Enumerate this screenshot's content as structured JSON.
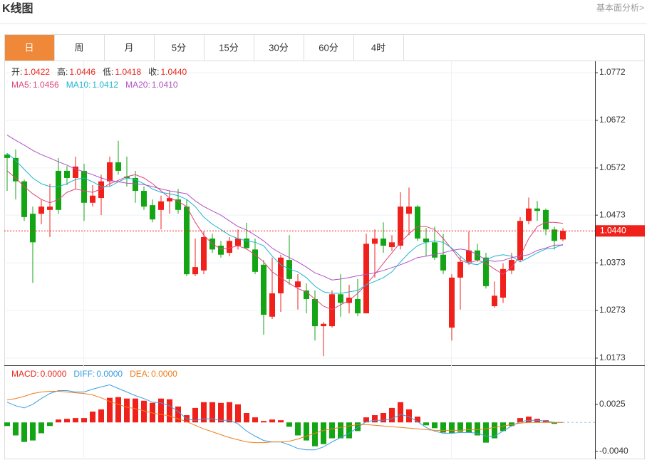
{
  "header": {
    "title": "K线图",
    "link": "基本面分析>"
  },
  "tabs": [
    "日",
    "周",
    "月",
    "5分",
    "15分",
    "30分",
    "60分",
    "4时"
  ],
  "active_tab": 0,
  "chart_data": [
    {
      "type": "candlestick",
      "info": [
        {
          "name": "开:",
          "value": 1.0422
        },
        {
          "name": "高:",
          "value": 1.0446
        },
        {
          "name": "低:",
          "value": 1.0418
        },
        {
          "name": "收:",
          "value": {
            "value": 1.044,
            "label": "1.0440"
          }
        }
      ],
      "info_color": "#e8261d",
      "up_color": "#f0211b",
      "down_color": "#14a514",
      "ylim": [
        1.0158,
        1.0796
      ],
      "yticks": [
        1.0772,
        1.0672,
        1.0572,
        1.0473,
        1.0373,
        1.0273,
        1.0173
      ],
      "grid": true,
      "last_price": {
        "value": 1.044,
        "label": "1.0440"
      },
      "open": [
        1.06,
        1.0593,
        1.0544,
        1.0476,
        1.0476,
        1.0484,
        1.0566,
        1.0566,
        1.0551,
        1.0566,
        1.0499,
        1.0509,
        1.0544,
        1.0584,
        1.0554,
        1.0551,
        1.0524,
        1.0494,
        1.0484,
        1.0502,
        1.0506,
        1.0491,
        1.0349,
        1.0357,
        1.0424,
        1.0409,
        1.0394,
        1.0409,
        1.0424,
        1.0401,
        1.0369,
        1.026,
        1.0309,
        1.0379,
        1.0322,
        1.0315,
        1.0297,
        1.024,
        1.024,
        1.0307,
        1.0289,
        1.0297,
        1.0267,
        1.0413,
        1.0424,
        1.0406,
        1.0409,
        1.0476,
        1.0491,
        1.0424,
        1.0416,
        1.039,
        1.0237,
        1.0342,
        1.0375,
        1.0399,
        1.0384,
        1.0282,
        1.03,
        1.0357,
        1.0379,
        1.0461,
        1.0487,
        1.0484,
        1.0443,
        1.0422
      ],
      "high": [
        1.0603,
        1.0611,
        1.0548,
        1.0491,
        1.0506,
        1.0539,
        1.0593,
        1.0576,
        1.0596,
        1.0581,
        1.0536,
        1.0558,
        1.0596,
        1.0629,
        1.0596,
        1.0566,
        1.0533,
        1.0506,
        1.0514,
        1.0524,
        1.0528,
        1.0506,
        1.0424,
        1.0439,
        1.0434,
        1.0419,
        1.0427,
        1.0443,
        1.0457,
        1.0424,
        1.0379,
        1.0384,
        1.039,
        1.0431,
        1.0349,
        1.033,
        1.0315,
        1.0249,
        1.0315,
        1.0349,
        1.0327,
        1.0339,
        1.0434,
        1.0443,
        1.0458,
        1.0431,
        1.0521,
        1.0531,
        1.0494,
        1.0446,
        1.0449,
        1.0434,
        1.0349,
        1.0387,
        1.0439,
        1.0413,
        1.0394,
        1.0334,
        1.0372,
        1.0394,
        1.0469,
        1.051,
        1.0503,
        1.0487,
        1.0449,
        1.0446
      ],
      "low": [
        1.0524,
        1.0506,
        1.0461,
        1.0331,
        1.0454,
        1.0427,
        1.0476,
        1.0536,
        1.0528,
        1.0461,
        1.0491,
        1.0473,
        1.0533,
        1.0558,
        1.0533,
        1.0499,
        1.0484,
        1.0458,
        1.0443,
        1.0476,
        1.0476,
        1.0345,
        1.0345,
        1.0349,
        1.0394,
        1.0384,
        1.0387,
        1.0401,
        1.0401,
        1.0349,
        1.0222,
        1.0255,
        1.027,
        1.0327,
        1.0275,
        1.0267,
        1.021,
        1.0177,
        1.0237,
        1.026,
        1.0267,
        1.0261,
        1.0267,
        1.0342,
        1.0394,
        1.0398,
        1.0401,
        1.0431,
        1.0419,
        1.0387,
        1.0379,
        1.0349,
        1.021,
        1.0275,
        1.0369,
        1.0375,
        1.0319,
        1.0279,
        1.0289,
        1.0349,
        1.0375,
        1.0454,
        1.0461,
        1.0431,
        1.0401,
        1.0418
      ],
      "close": [
        1.0593,
        1.0544,
        1.0469,
        1.0416,
        1.0491,
        1.0491,
        1.0484,
        1.0551,
        1.0575,
        1.0499,
        1.0514,
        1.0544,
        1.0584,
        1.0566,
        1.0551,
        1.0524,
        1.0491,
        1.0464,
        1.0502,
        1.0509,
        1.0484,
        1.0349,
        1.0364,
        1.0427,
        1.0401,
        1.039,
        1.0419,
        1.0424,
        1.0404,
        1.0354,
        1.0264,
        1.0309,
        1.0384,
        1.0339,
        1.0334,
        1.0297,
        1.024,
        1.0245,
        1.0307,
        1.0289,
        1.03,
        1.0267,
        1.0413,
        1.0424,
        1.0409,
        1.0416,
        1.0491,
        1.0491,
        1.0424,
        1.0416,
        1.0384,
        1.0357,
        1.0342,
        1.0375,
        1.0399,
        1.0379,
        1.0324,
        1.0304,
        1.036,
        1.0379,
        1.0461,
        1.0487,
        1.0482,
        1.0443,
        1.0419,
        1.044
      ],
      "ma": [
        {
          "name": "MA5:",
          "color": "#e0457b",
          "value": 1.0456,
          "values": [
            1.0566,
            1.0551,
            1.0533,
            1.0518,
            1.0506,
            1.0499,
            1.0506,
            1.0521,
            1.0528,
            1.0524,
            1.0521,
            1.0528,
            1.0539,
            1.0546,
            1.0554,
            1.0558,
            1.0551,
            1.0539,
            1.0524,
            1.0509,
            1.0502,
            1.0491,
            1.0458,
            1.0431,
            1.0413,
            1.0402,
            1.0404,
            1.0409,
            1.0402,
            1.039,
            1.0375,
            1.0354,
            1.0342,
            1.033,
            1.0319,
            1.0312,
            1.0297,
            1.0282,
            1.0275,
            1.0285,
            1.0294,
            1.0309,
            1.0327,
            1.0349,
            1.0372,
            1.0394,
            1.0416,
            1.0434,
            1.0449,
            1.0449,
            1.0443,
            1.0424,
            1.0402,
            1.0379,
            1.0372,
            1.0379,
            1.0372,
            1.036,
            1.0349,
            1.0364,
            1.0387,
            1.0424,
            1.0449,
            1.0458,
            1.0458,
            1.0456
          ]
        },
        {
          "name": "MA10:",
          "color": "#1bb5d0",
          "value": 1.0412,
          "values": [
            1.0603,
            1.0588,
            1.0569,
            1.0551,
            1.0539,
            1.0533,
            1.0533,
            1.0539,
            1.0548,
            1.0551,
            1.0543,
            1.0533,
            1.0533,
            1.0543,
            1.0551,
            1.0548,
            1.0539,
            1.0528,
            1.0521,
            1.0518,
            1.0514,
            1.0506,
            1.0491,
            1.0469,
            1.0454,
            1.0443,
            1.0431,
            1.0424,
            1.0419,
            1.0416,
            1.0409,
            1.0387,
            1.0369,
            1.036,
            1.0354,
            1.0342,
            1.0324,
            1.0312,
            1.0309,
            1.0309,
            1.0312,
            1.0315,
            1.0327,
            1.0334,
            1.0342,
            1.0354,
            1.0375,
            1.0394,
            1.0409,
            1.0416,
            1.0419,
            1.0416,
            1.0404,
            1.0387,
            1.0372,
            1.0369,
            1.0379,
            1.0387,
            1.039,
            1.0387,
            1.0375,
            1.0384,
            1.0394,
            1.0402,
            1.0404,
            1.0412
          ]
        },
        {
          "name": "MA20:",
          "color": "#b14fc5",
          "value": {
            "value": 1.041,
            "label": "1.0410"
          },
          "values": [
            1.0641,
            1.063,
            1.062,
            1.0609,
            1.06,
            1.0593,
            1.0585,
            1.0578,
            1.057,
            1.0564,
            1.0558,
            1.0551,
            1.0546,
            1.0543,
            1.054,
            1.0539,
            1.0537,
            1.0533,
            1.0528,
            1.0524,
            1.0521,
            1.0518,
            1.0503,
            1.0491,
            1.0482,
            1.0473,
            1.0461,
            1.0449,
            1.0442,
            1.0431,
            1.0419,
            1.0404,
            1.0393,
            1.0384,
            1.0375,
            1.0364,
            1.0352,
            1.0345,
            1.0337,
            1.0339,
            1.0342,
            1.0346,
            1.0349,
            1.0352,
            1.0357,
            1.0363,
            1.0369,
            1.0376,
            1.0384,
            1.0387,
            1.0391,
            1.0394,
            1.0399,
            1.0402,
            1.0399,
            1.039,
            1.0379,
            1.0376,
            1.0378,
            1.0384,
            1.0387,
            1.039,
            1.0399,
            1.0404,
            1.041,
            1.041
          ]
        }
      ]
    },
    {
      "type": "macd",
      "up_color": "#f0211b",
      "down_color": "#14a514",
      "ylim": [
        -0.0051,
        0.0077
      ],
      "yticks": [
        0.0025,
        {
          "value": -0.004,
          "label": "-0.0040"
        }
      ],
      "series": [
        {
          "name": "MACD:",
          "color": "#e8261d",
          "value": {
            "value": 0,
            "label": "0.0000"
          },
          "values": [
            -0.0005,
            -0.0018,
            -0.0027,
            -0.0025,
            -0.0015,
            -0.0005,
            0.0004,
            0.0005,
            0.0006,
            0.0006,
            0.0015,
            0.0018,
            0.0034,
            0.0035,
            0.0033,
            0.0033,
            0.003,
            0.0027,
            0.0033,
            0.0032,
            0.0022,
            0.001,
            0.002,
            0.0028,
            0.0028,
            0.0027,
            0.0028,
            0.0025,
            0.0013,
            0.0007,
            0.0002,
            0.0004,
            0.0003,
            -0.0006,
            -0.0018,
            -0.0025,
            -0.0033,
            -0.003,
            -0.0022,
            -0.0022,
            -0.0022,
            -0.0012,
            0.0007,
            0.001,
            0.0013,
            0.002,
            0.0028,
            0.0018,
            0.0008,
            -0.0004,
            -0.0008,
            -0.0014,
            -0.0015,
            -0.0013,
            -0.0014,
            -0.0018,
            -0.0028,
            -0.0022,
            -0.0012,
            -0.0005,
            0.0006,
            0.0008,
            0.0005,
            0.0003,
            -0.0002,
            0
          ]
        },
        {
          "name": "DIFF:",
          "color": "#3a9de0",
          "value": {
            "value": 0,
            "label": "0.0000"
          },
          "values": [
            0.0028,
            0.0023,
            0.002,
            0.0025,
            0.0033,
            0.004,
            0.0044,
            0.0044,
            0.0042,
            0.0042,
            0.0046,
            0.0049,
            0.0052,
            0.0047,
            0.0042,
            0.0037,
            0.0033,
            0.0028,
            0.0027,
            0.0023,
            0.0015,
            0.0005,
            0.0003,
            0.0005,
            0.0005,
            0.0003,
            0.0003,
            -0.0002,
            -0.0012,
            -0.0019,
            -0.0025,
            -0.0027,
            -0.0027,
            -0.0031,
            -0.0036,
            -0.0038,
            -0.0038,
            -0.0034,
            -0.0027,
            -0.0021,
            -0.0015,
            -0.0007,
            0.0001,
            0.0003,
            0.0003,
            0.0005,
            0.0011,
            0.0008,
            0.0001,
            -0.0007,
            -0.0012,
            -0.0015,
            -0.0015,
            -0.0014,
            -0.0014,
            -0.0015,
            -0.0019,
            -0.0019,
            -0.0012,
            -0.0005,
            0.0001,
            0.0003,
            0.0003,
            0.0002,
            0,
            0
          ]
        },
        {
          "name": "DEA:",
          "color": "#f07d1a",
          "value": {
            "value": 0,
            "label": "0.0000"
          },
          "values": [
            0.0031,
            0.0033,
            0.0036,
            0.004,
            0.0042,
            0.0043,
            0.0043,
            0.0042,
            0.0041,
            0.004,
            0.0038,
            0.0034,
            0.0029,
            0.0025,
            0.0021,
            0.0019,
            0.0016,
            0.0013,
            0.0011,
            0.0009,
            0.0005,
            0.0001,
            -0.0004,
            -0.0009,
            -0.0013,
            -0.0017,
            -0.0021,
            -0.0024,
            -0.0027,
            -0.0028,
            -0.0028,
            -0.0027,
            -0.0027,
            -0.0026,
            -0.0023,
            -0.0019,
            -0.0015,
            -0.0011,
            -0.0009,
            -0.0007,
            -0.0005,
            -0.0003,
            -0.0003,
            -0.0004,
            -0.0005,
            -0.0006,
            -0.0007,
            -0.0008,
            -0.0009,
            -0.001,
            -0.0011,
            -0.0011,
            -0.0011,
            -0.0011,
            -0.001,
            -0.001,
            -0.0009,
            -0.0007,
            -0.0005,
            -0.0003,
            -0.0001,
            0,
            0,
            0,
            0,
            0
          ]
        }
      ]
    }
  ]
}
